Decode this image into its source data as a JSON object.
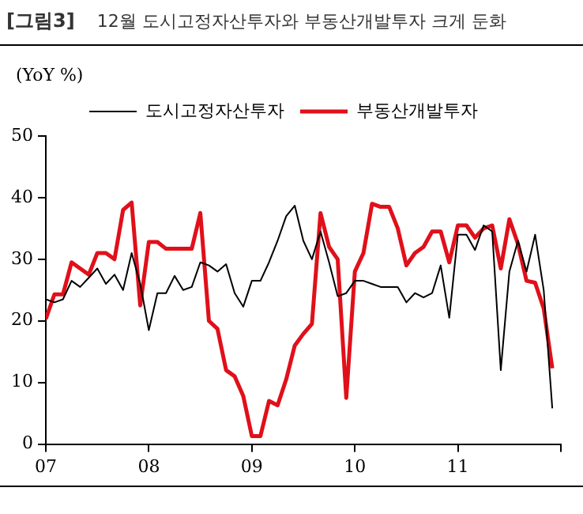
{
  "chart_data": {
    "type": "line",
    "title": "12월 도시고정자산투자와 부동산개발투자 크게 둔화",
    "ylabel": "(YoY %)",
    "annotations": [
      "[그림3]"
    ],
    "x": [
      "2007-01",
      "2007-02",
      "2007-03",
      "2007-04",
      "2007-05",
      "2007-06",
      "2007-07",
      "2007-08",
      "2007-09",
      "2007-10",
      "2007-11",
      "2007-12",
      "2008-01",
      "2008-02",
      "2008-03",
      "2008-04",
      "2008-05",
      "2008-06",
      "2008-07",
      "2008-08",
      "2008-09",
      "2008-10",
      "2008-11",
      "2008-12",
      "2009-01",
      "2009-02",
      "2009-03",
      "2009-04",
      "2009-05",
      "2009-06",
      "2009-07",
      "2009-08",
      "2009-09",
      "2009-10",
      "2009-11",
      "2009-12",
      "2010-01",
      "2010-02",
      "2010-03",
      "2010-04",
      "2010-05",
      "2010-06",
      "2010-07",
      "2010-08",
      "2010-09",
      "2010-10",
      "2010-11",
      "2010-12",
      "2011-01",
      "2011-02",
      "2011-03",
      "2011-04",
      "2011-05",
      "2011-06",
      "2011-07",
      "2011-08",
      "2011-09",
      "2011-10",
      "2011-11",
      "2011-12"
    ],
    "series": [
      {
        "name": "도시고정자산투자",
        "color": "#000000",
        "values": [
          23.5,
          23,
          23.5,
          26.5,
          25.5,
          27,
          28.5,
          26,
          27.5,
          25,
          31,
          26,
          18.5,
          24.5,
          24.5,
          27.3,
          25,
          25.5,
          29.5,
          29,
          28,
          29.2,
          24.5,
          22.3,
          26.5,
          26.5,
          29.5,
          33,
          37,
          38.7,
          33,
          30,
          34.5,
          29.5,
          24,
          24.5,
          26.5,
          26.5,
          26,
          25.5,
          25.5,
          25.5,
          23,
          24.5,
          23.8,
          24.5,
          29,
          20.5,
          34,
          34,
          31.5,
          35.5,
          34.5,
          12,
          28,
          33,
          28,
          34,
          25,
          5.8
        ]
      },
      {
        "name": "부동산개발투자",
        "color": "#e0101a",
        "values": [
          20.3,
          24.3,
          24.3,
          29.5,
          28.5,
          27.5,
          31,
          31,
          30,
          38,
          39.2,
          22.5,
          32.8,
          32.8,
          31.7,
          31.7,
          31.7,
          31.7,
          37.5,
          20,
          18.7,
          12,
          11,
          7.8,
          1.3,
          1.3,
          7,
          6.3,
          10.5,
          16,
          17.9,
          19.5,
          37.5,
          32,
          30,
          7.5,
          28,
          31,
          39,
          38.5,
          38.5,
          35,
          29,
          31,
          32,
          34.5,
          34.5,
          29.5,
          35.5,
          35.5,
          33.5,
          35,
          35.5,
          28.5,
          36.5,
          32.5,
          26.5,
          26.2,
          22,
          12.3
        ]
      }
    ],
    "xlim": [
      "2007-01",
      "2012-01"
    ],
    "xticks": [
      {
        "value": "2007-01",
        "label": "07"
      },
      {
        "value": "2008-01",
        "label": "08"
      },
      {
        "value": "2009-01",
        "label": "09"
      },
      {
        "value": "2010-01",
        "label": "10"
      },
      {
        "value": "2011-01",
        "label": "11"
      },
      {
        "value": "2012-01",
        "label": null
      }
    ],
    "ylim": [
      0,
      50
    ],
    "yticks": [
      0,
      10,
      20,
      30,
      40,
      50
    ],
    "grid": false,
    "legend": "top",
    "marker": "none",
    "line_style": "solid"
  }
}
